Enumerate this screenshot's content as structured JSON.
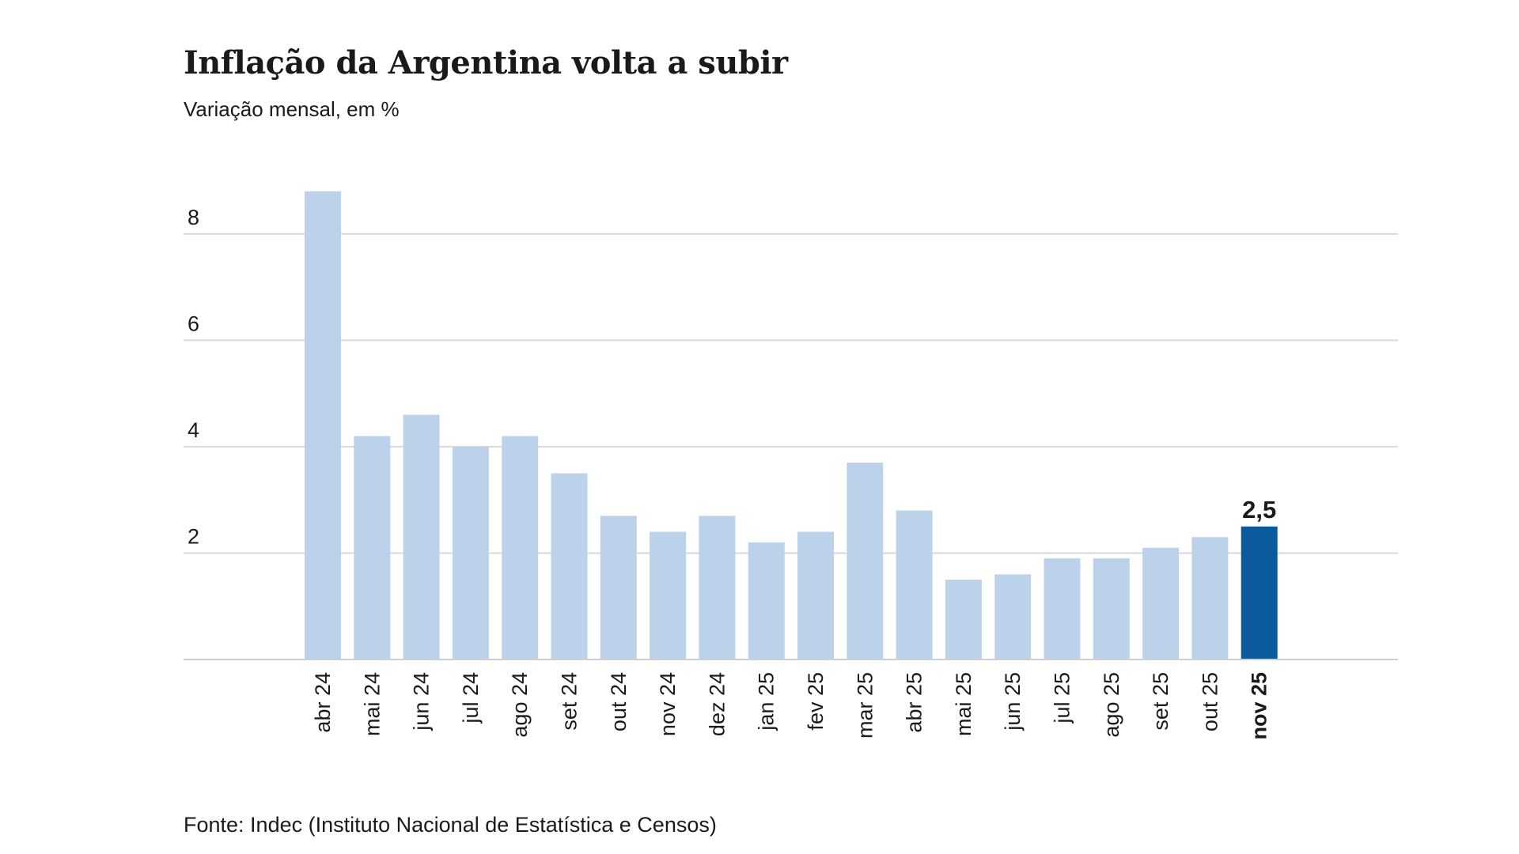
{
  "chart_data": {
    "type": "bar",
    "title": "Inflação da Argentina volta a subir",
    "subtitle": "Variação mensal, em %",
    "source": "Fonte: Indec (Instituto Nacional de Estatística e Censos)",
    "xlabel": "",
    "ylabel": "",
    "ylim": [
      0,
      8.8
    ],
    "yticks": [
      {
        "value": 2,
        "label": "2"
      },
      {
        "value": 4,
        "label": "4"
      },
      {
        "value": 6,
        "label": "6"
      },
      {
        "value": 8,
        "label": "8"
      }
    ],
    "grid": true,
    "categories": [
      "abr 24",
      "mai 24",
      "jun 24",
      "jul 24",
      "ago 24",
      "set 24",
      "out 24",
      "nov 24",
      "dez 24",
      "jan 25",
      "fev 25",
      "mar 25",
      "abr 25",
      "mai 25",
      "jun 25",
      "jul 25",
      "ago 25",
      "set 25",
      "out 25",
      "nov 25"
    ],
    "values": [
      8.8,
      4.2,
      4.6,
      4.0,
      4.2,
      3.5,
      2.7,
      2.4,
      2.7,
      2.2,
      2.4,
      3.7,
      2.8,
      1.5,
      1.6,
      1.9,
      1.9,
      2.1,
      2.3,
      2.5
    ],
    "highlight": {
      "category": "nov 25",
      "label": "2,5"
    },
    "colors": {
      "bar": "#bcd2ea",
      "highlight": "#0b5b9c"
    }
  }
}
